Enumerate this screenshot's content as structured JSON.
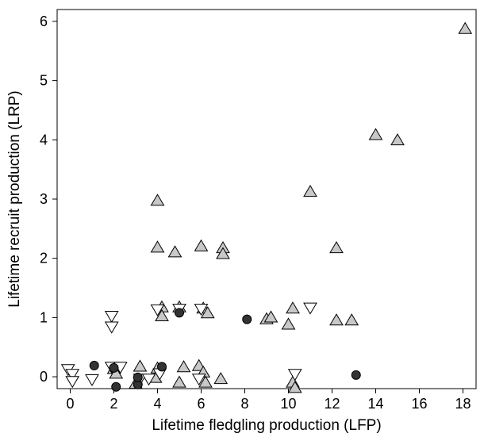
{
  "chart_data": {
    "type": "scatter",
    "xlabel": "Lifetime fledgling production (LFP)",
    "ylabel": "Lifetime recruit production (LRP)",
    "xlim": [
      -0.6,
      18.6
    ],
    "ylim": [
      -0.2,
      6.2
    ],
    "xticks": [
      0,
      2,
      4,
      6,
      8,
      10,
      12,
      14,
      16,
      18
    ],
    "yticks": [
      0,
      1,
      2,
      3,
      4,
      5,
      6
    ],
    "legend": "none",
    "grid": false,
    "series": [
      {
        "marker": "triangle-up",
        "fill": "#c8c8c8",
        "points": [
          [
            4,
            2.97
          ],
          [
            4,
            2.18
          ],
          [
            4.2,
            1.17
          ],
          [
            4.2,
            1.02
          ],
          [
            4.8,
            2.1
          ],
          [
            5,
            1.17
          ],
          [
            6,
            2.2
          ],
          [
            6.1,
            1.15
          ],
          [
            6.3,
            1.07
          ],
          [
            7,
            2.17
          ],
          [
            7,
            2.07
          ],
          [
            9,
            0.97
          ],
          [
            9.2,
            1.0
          ],
          [
            10,
            0.88
          ],
          [
            10.2,
            1.15
          ],
          [
            11,
            3.12
          ],
          [
            12.2,
            2.17
          ],
          [
            12.2,
            0.95
          ],
          [
            12.9,
            0.95
          ],
          [
            14,
            4.08
          ],
          [
            15,
            3.99
          ],
          [
            18.1,
            5.87
          ],
          [
            2,
            0.13
          ],
          [
            2.1,
            0.05
          ],
          [
            3,
            -0.12
          ],
          [
            3.2,
            0.17
          ],
          [
            3.9,
            -0.02
          ],
          [
            4,
            0.14
          ],
          [
            5,
            -0.1
          ],
          [
            5.2,
            0.16
          ],
          [
            5.9,
            0.18
          ],
          [
            6.1,
            0.07
          ],
          [
            6.2,
            -0.1
          ],
          [
            6.9,
            -0.04
          ],
          [
            10.2,
            -0.1
          ],
          [
            10.3,
            -0.19
          ]
        ]
      },
      {
        "marker": "triangle-down",
        "fill": "#ffffff",
        "points": [
          [
            -0.1,
            0.13
          ],
          [
            0.1,
            0.05
          ],
          [
            0.1,
            -0.07
          ],
          [
            1,
            -0.04
          ],
          [
            1.9,
            1.03
          ],
          [
            1.9,
            0.85
          ],
          [
            1.9,
            0.17
          ],
          [
            2.3,
            0.17
          ],
          [
            3.2,
            -0.03
          ],
          [
            3.6,
            -0.03
          ],
          [
            4,
            1.14
          ],
          [
            4.1,
            0.06
          ],
          [
            5,
            1.15
          ],
          [
            5.9,
            -0.03
          ],
          [
            6,
            1.15
          ],
          [
            10.3,
            0.05
          ],
          [
            11,
            1.17
          ]
        ]
      },
      {
        "marker": "circle",
        "fill": "#333333",
        "points": [
          [
            1.1,
            0.19
          ],
          [
            2,
            0.15
          ],
          [
            2.1,
            -0.17
          ],
          [
            3.1,
            -0.13
          ],
          [
            3.1,
            -0.01
          ],
          [
            4.2,
            0.17
          ],
          [
            5,
            1.08
          ],
          [
            8.1,
            0.97
          ],
          [
            13.1,
            0.03
          ]
        ]
      }
    ]
  }
}
